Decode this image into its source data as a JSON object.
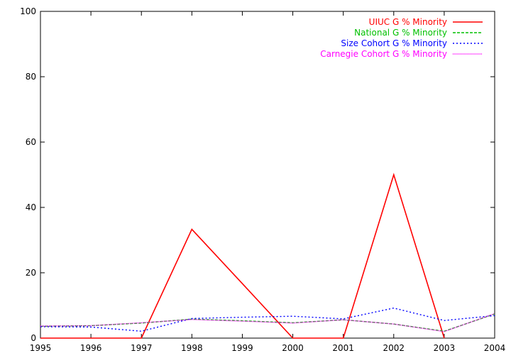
{
  "chart_data": {
    "type": "line",
    "title": "",
    "xlabel": "",
    "ylabel": "",
    "x": [
      1995,
      1996,
      1997,
      1998,
      1999,
      2000,
      2001,
      2002,
      2003,
      2004
    ],
    "xlim": [
      1995,
      2004
    ],
    "ylim": [
      0,
      100
    ],
    "xticks": [
      "1995",
      "1996",
      "1997",
      "1998",
      "1999",
      "2000",
      "2001",
      "2002",
      "2003",
      "2004"
    ],
    "yticks": [
      "0",
      "20",
      "40",
      "60",
      "80",
      "100"
    ],
    "grid": false,
    "legend_position": "top-right",
    "series": [
      {
        "name": "UIUC G % Minority",
        "color": "#ff0000",
        "style": "solid",
        "values": [
          0,
          0,
          0,
          33.3,
          16.7,
          0,
          0,
          50,
          0,
          null
        ]
      },
      {
        "name": "National G % Minority",
        "color": "#00c000",
        "style": "dashed",
        "values": [
          3.6,
          3.8,
          4.6,
          5.8,
          5.3,
          4.7,
          5.6,
          4.3,
          2.1,
          7.4
        ]
      },
      {
        "name": "Size Cohort G % Minority",
        "color": "#0000ff",
        "style": "dotted",
        "values": [
          3.5,
          3.4,
          2.1,
          6.0,
          6.4,
          6.7,
          5.9,
          9.2,
          5.4,
          6.9
        ]
      },
      {
        "name": "Carnegie Cohort G % Minority",
        "color": "#ff00ff",
        "style": "dotted-fine",
        "values": [
          3.7,
          3.8,
          4.7,
          5.7,
          5.2,
          4.6,
          5.6,
          4.3,
          2.0,
          7.5
        ]
      }
    ]
  }
}
